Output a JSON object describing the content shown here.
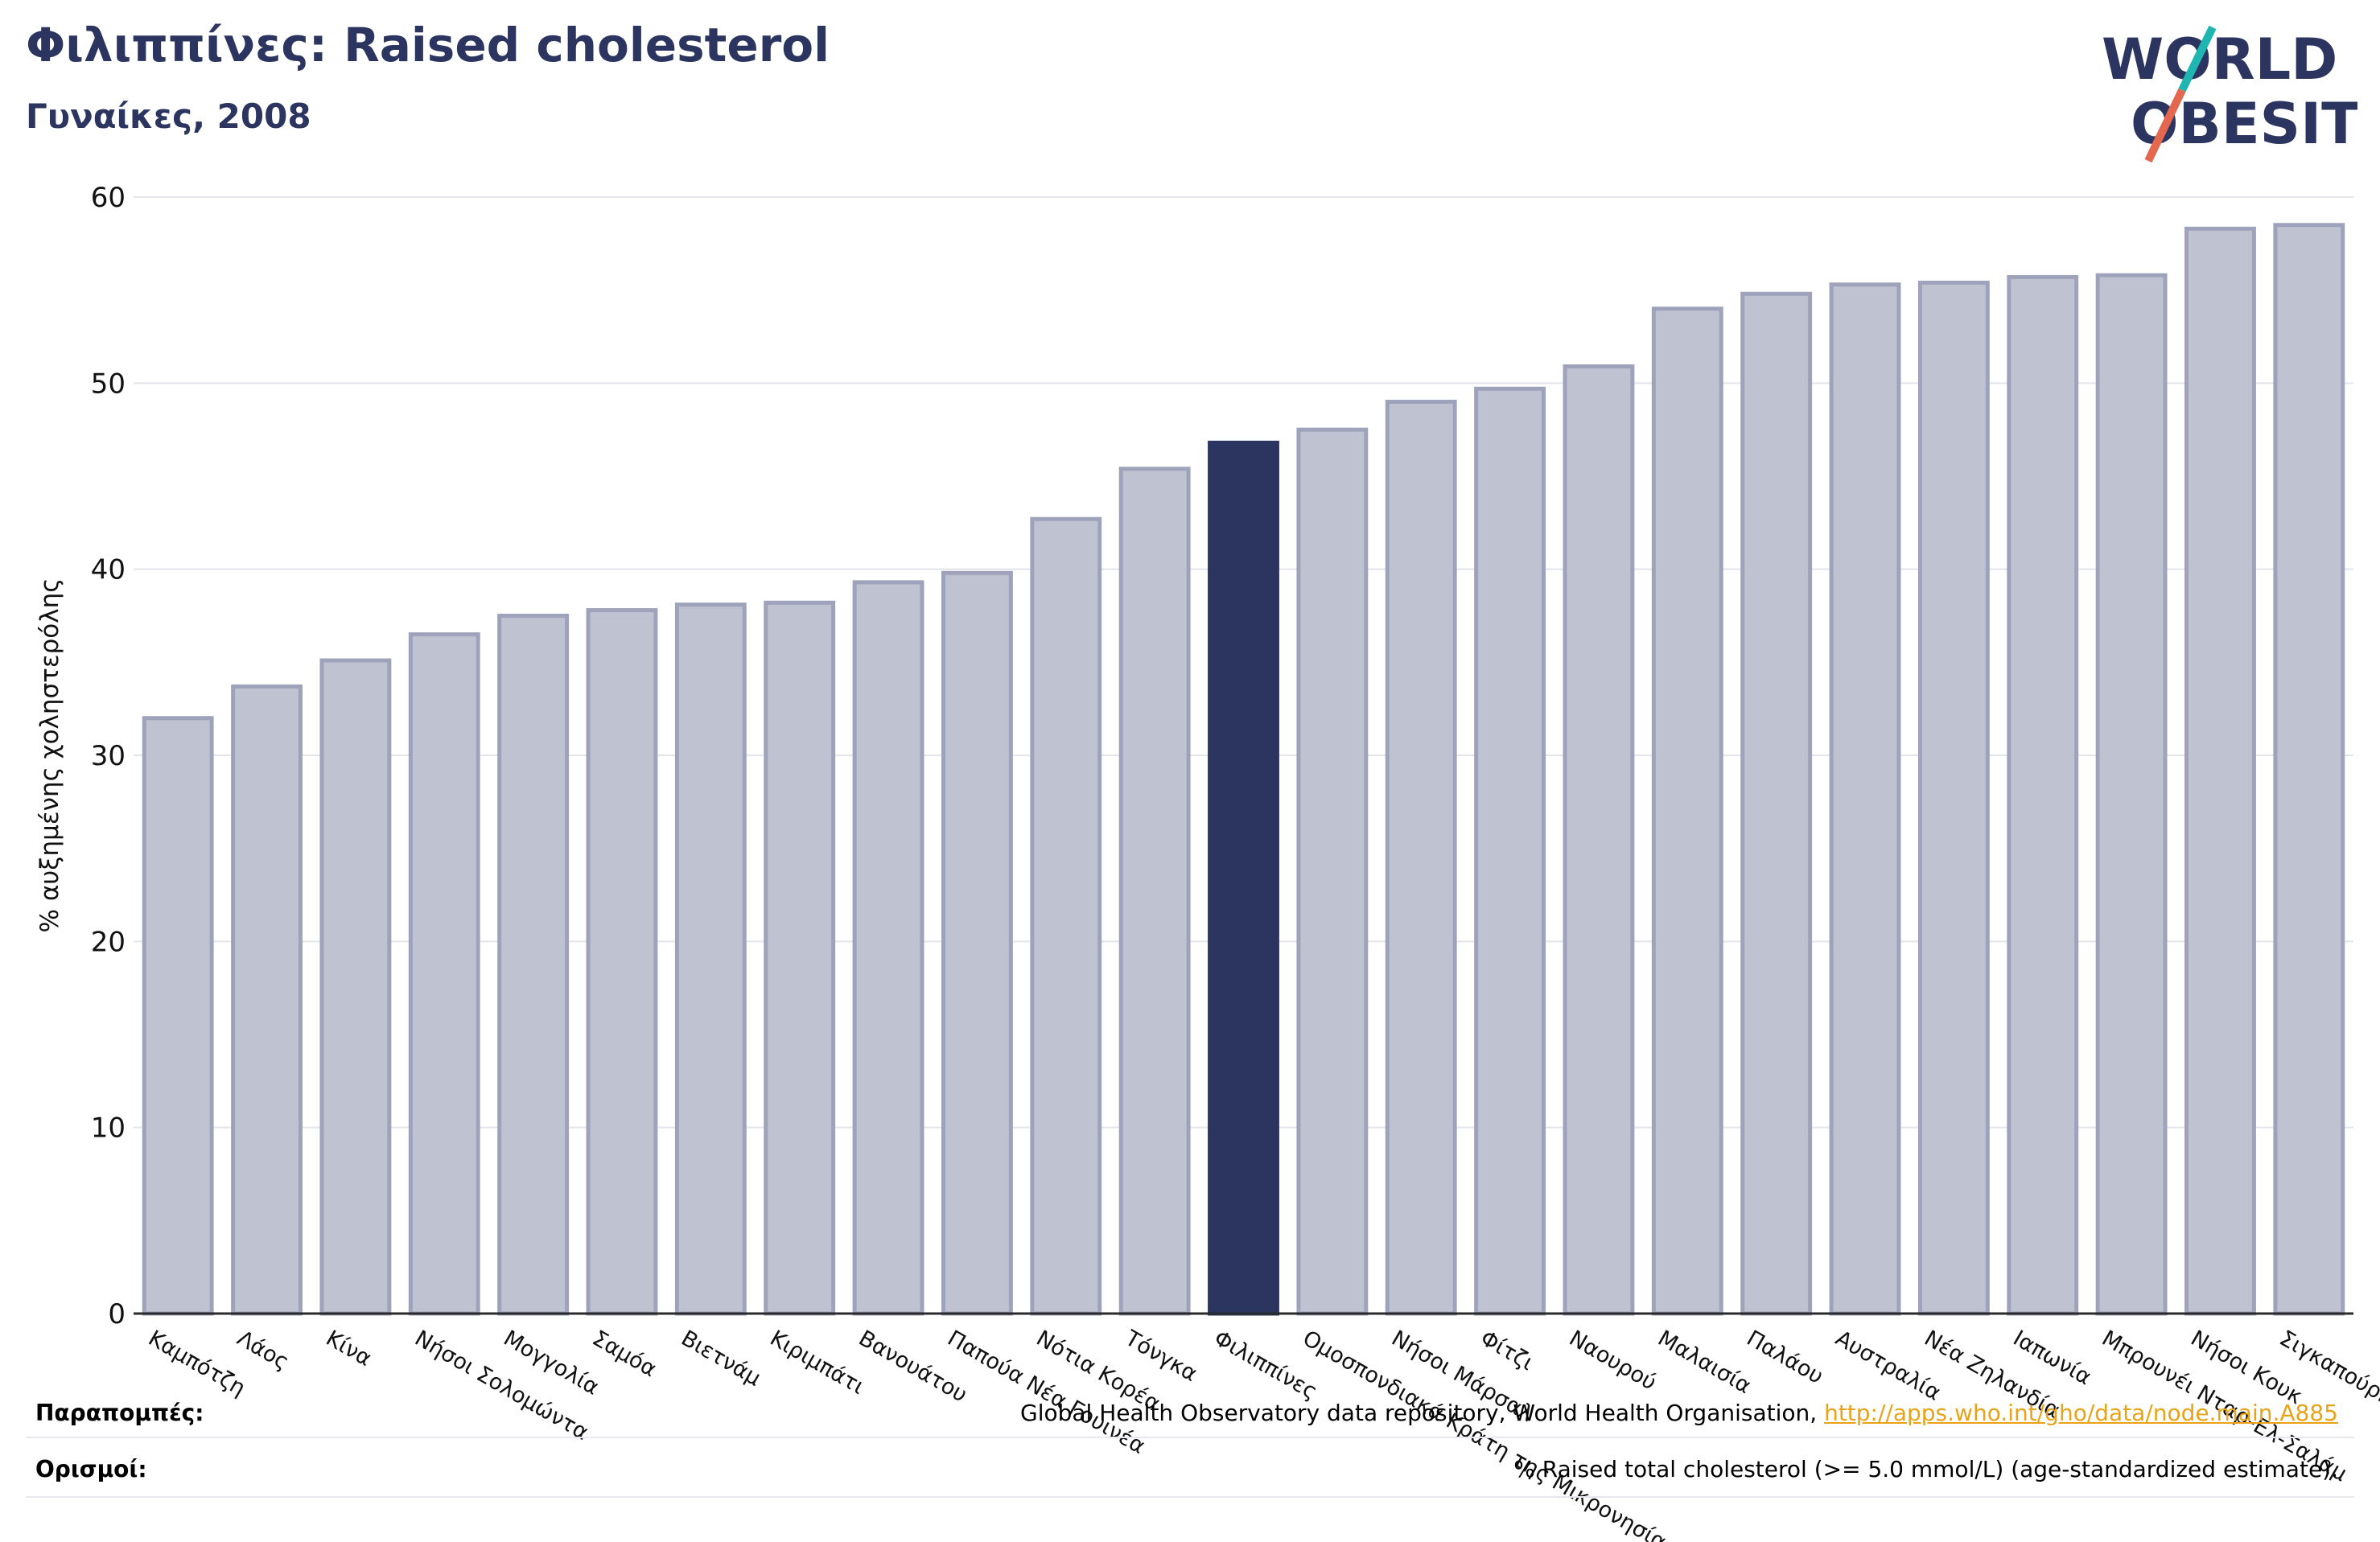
{
  "title": "Φιλιππίνες: Raised cholesterol",
  "subtitle": "Γυναίκες, 2008",
  "logo": {
    "line1": "WORLD",
    "line2": "OBESITY",
    "accent_colors": [
      "#1fb5b0",
      "#e3684f"
    ],
    "text_color": "#2b3560"
  },
  "footer": {
    "references_label": "Παραπομπές:",
    "references_text": "Global Health Observatory data repository, World Health Organisation, ",
    "references_link": "http://apps.who.int/gho/data/node.main.A885",
    "definitions_label": "Ορισμοί:",
    "definitions_text": "% Raised total cholesterol (>= 5.0 mmol/L) (age-standardized estimate)."
  },
  "chart_data": {
    "type": "bar",
    "ylabel": "% αυξημένης χοληστερόλης",
    "ylim": [
      0,
      60
    ],
    "yticks": [
      0,
      10,
      20,
      30,
      40,
      50,
      60
    ],
    "grid": true,
    "highlight": "Φιλιππίνες",
    "colors": {
      "bar": "#bfc2d0",
      "bar_border": "#9ea3bb",
      "highlight": "#2b3560"
    },
    "categories": [
      "Καμπότζη",
      "Λάος",
      "Κίνα",
      "Νήσοι Σολομώντα",
      "Μογγολία",
      "Σαμόα",
      "Βιετνάμ",
      "Κιριμπάτι",
      "Βανουάτου",
      "Παπούα Νέα Γουινέα",
      "Νότια Κορέα",
      "Τόνγκα",
      "Φιλιππίνες",
      "Ομοσπονδιακά Κράτη της Μικρονησίας",
      "Νήσοι Μάρσαλ",
      "Φίτζι",
      "Ναουρού",
      "Μαλαισία",
      "Παλάου",
      "Αυστραλία",
      "Νέα Ζηλανδία",
      "Ιαπωνία",
      "Μπρουνέι Νταρ-Ελ-Σαλάμ",
      "Νήσοι Κουκ",
      "Σιγκαπούρη"
    ],
    "values": [
      32.0,
      33.7,
      35.1,
      36.5,
      37.5,
      37.8,
      38.1,
      38.2,
      39.3,
      39.8,
      42.7,
      45.4,
      46.8,
      47.5,
      49.0,
      49.7,
      50.9,
      54.0,
      54.8,
      55.3,
      55.4,
      55.7,
      55.8,
      58.3,
      58.5
    ]
  }
}
